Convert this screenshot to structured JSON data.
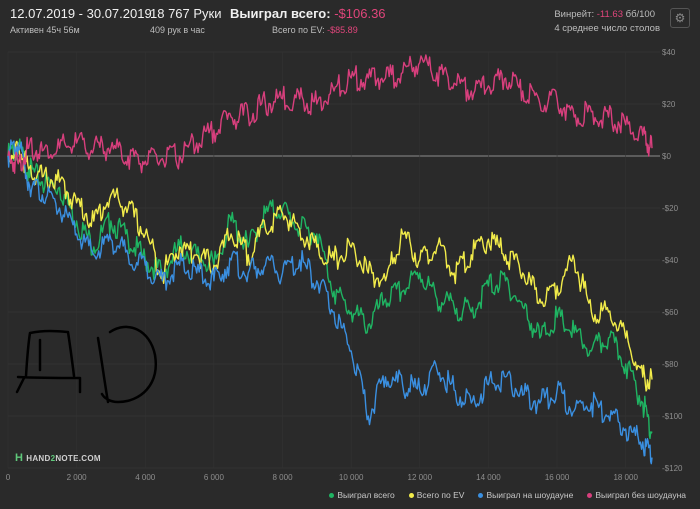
{
  "header": {
    "date_range": "12.07.2019 - 30.07.2019",
    "active": "Активен 45ч 56м",
    "hands": "18 767 Руки",
    "hands_per_hour": "409 рук в час",
    "won_label": "Выиграл всего:",
    "won_value": "-$106.36",
    "ev_label": "Всего по EV:",
    "ev_value": "-$85.89",
    "winrate_label": "Винрейт:",
    "winrate_value": "-11.63",
    "winrate_suffix": "бб/100",
    "tables": "4 среднее число столов"
  },
  "logo": {
    "prefix": "HAND",
    "middle": "2",
    "suffix": "NOTE.COM"
  },
  "colors": {
    "green": "#1fb462",
    "yellow": "#f2ec4a",
    "blue": "#3a8fe0",
    "pink": "#d83f7d",
    "axis_text": "#8e8e8e",
    "zero_line": "#8c8c8c"
  },
  "chart_data": {
    "type": "line",
    "title": "",
    "xlabel": "",
    "ylabel": "",
    "xlim": [
      0,
      19000
    ],
    "ylim": [
      -120,
      40
    ],
    "x_ticks": [
      0,
      2000,
      4000,
      6000,
      8000,
      10000,
      12000,
      14000,
      16000,
      18000
    ],
    "x_tick_labels": [
      "0",
      "2 000",
      "4 000",
      "6 000",
      "8 000",
      "10 000",
      "12 000",
      "14 000",
      "16 000",
      "18 000"
    ],
    "y_ticks": [
      40,
      20,
      0,
      -20,
      -40,
      -60,
      -80,
      -100,
      -120
    ],
    "y_tick_labels": [
      "$40",
      "$20",
      "$0",
      "-$20",
      "-$40",
      "-$60",
      "-$80",
      "-$100",
      "-$120"
    ],
    "grid": true,
    "legend_position": "bottom-right",
    "x": [
      0,
      300,
      600,
      1000,
      1500,
      2000,
      2500,
      3000,
      3500,
      4000,
      4500,
      5000,
      5500,
      6000,
      6500,
      7000,
      7500,
      8000,
      8500,
      9000,
      9500,
      10000,
      10500,
      11000,
      11500,
      12000,
      12500,
      13000,
      13500,
      14000,
      14500,
      15000,
      15500,
      16000,
      16500,
      17000,
      17500,
      18000,
      18500,
      18767
    ],
    "series": [
      {
        "name": "Выиграл всего",
        "color": "green",
        "values": [
          0,
          3,
          -5,
          -10,
          -12,
          -25,
          -35,
          -25,
          -32,
          -40,
          -45,
          -35,
          -38,
          -42,
          -25,
          -35,
          -22,
          -20,
          -28,
          -30,
          -52,
          -60,
          -65,
          -55,
          -52,
          -45,
          -55,
          -58,
          -60,
          -50,
          -48,
          -58,
          -70,
          -62,
          -68,
          -75,
          -70,
          -80,
          -95,
          -106
        ]
      },
      {
        "name": "Всего по EV",
        "color": "yellow",
        "values": [
          0,
          3,
          -5,
          -8,
          -10,
          -18,
          -25,
          -15,
          -20,
          -30,
          -45,
          -35,
          -38,
          -42,
          -30,
          -38,
          -28,
          -22,
          -28,
          -35,
          -40,
          -35,
          -45,
          -48,
          -30,
          -40,
          -35,
          -45,
          -38,
          -32,
          -38,
          -45,
          -55,
          -50,
          -40,
          -60,
          -60,
          -70,
          -85,
          -86
        ]
      },
      {
        "name": "Выиграл на шоудауне",
        "color": "blue",
        "values": [
          0,
          5,
          -10,
          -15,
          -20,
          -30,
          -38,
          -32,
          -38,
          -42,
          -48,
          -42,
          -45,
          -48,
          -40,
          -45,
          -42,
          -45,
          -40,
          -48,
          -60,
          -75,
          -100,
          -85,
          -88,
          -90,
          -82,
          -90,
          -95,
          -88,
          -85,
          -92,
          -95,
          -90,
          -98,
          -95,
          -100,
          -105,
          -110,
          -116
        ]
      },
      {
        "name": "Выиграл без шоудауна",
        "color": "pink",
        "values": [
          0,
          -3,
          3,
          2,
          3,
          5,
          3,
          3,
          0,
          -2,
          -1,
          0,
          5,
          10,
          15,
          16,
          20,
          22,
          22,
          20,
          25,
          30,
          30,
          30,
          32,
          36,
          32,
          28,
          25,
          27,
          30,
          25,
          20,
          22,
          15,
          17,
          15,
          12,
          8,
          3
        ]
      }
    ]
  }
}
